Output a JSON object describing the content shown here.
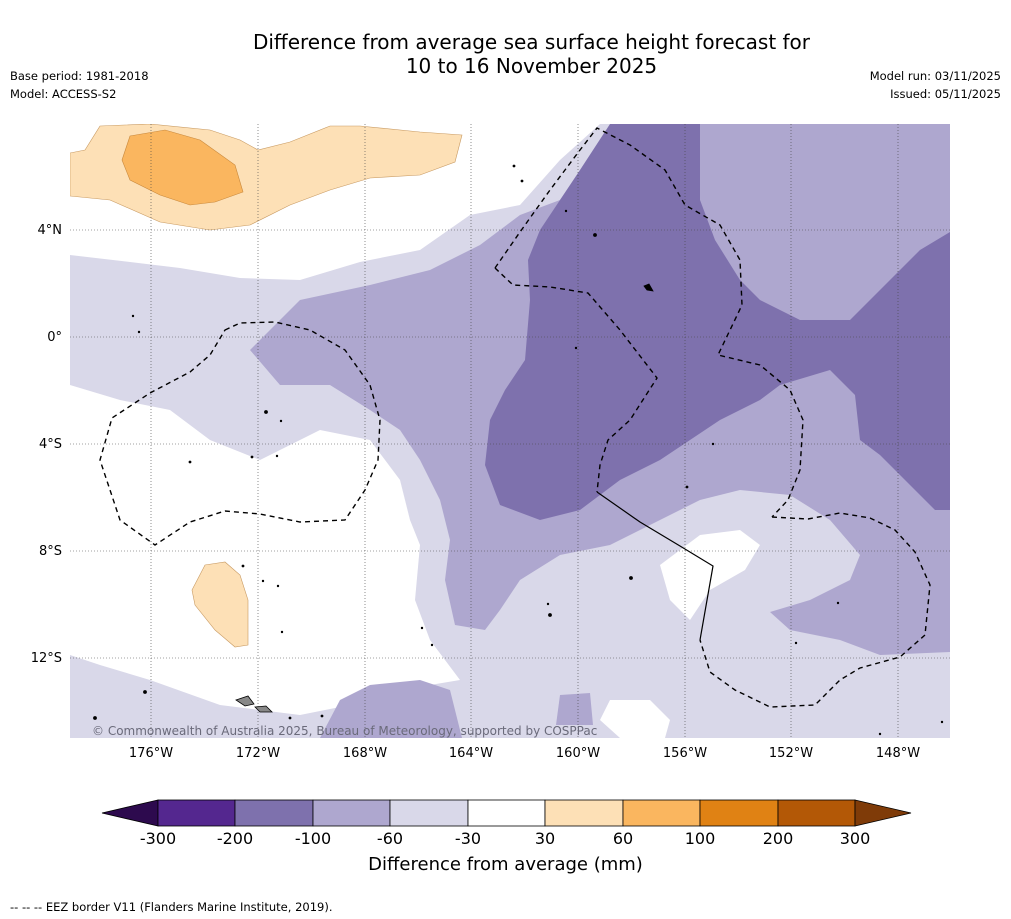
{
  "title": {
    "line1": "Difference from average sea surface height forecast for",
    "line2": "10 to 16 November 2025"
  },
  "meta_left": {
    "base_period": "Base period: 1981-2018",
    "model": "Model: ACCESS-S2"
  },
  "meta_right": {
    "model_run": "Model run: 03/11/2025",
    "issued": "Issued: 05/11/2025"
  },
  "map": {
    "lat_labels": [
      "4°N",
      "0°",
      "4°S",
      "8°S",
      "12°S"
    ],
    "lon_labels": [
      "176°W",
      "172°W",
      "168°W",
      "164°W",
      "160°W",
      "156°W",
      "152°W",
      "148°W"
    ],
    "copyright": "© Commonwealth of Australia 2025, Bureau of Meteorology, supported by COSPPac"
  },
  "colorbar": {
    "title": "Difference from average (mm)",
    "tick_labels": [
      "-300",
      "-200",
      "-100",
      "-60",
      "-30",
      "30",
      "60",
      "100",
      "200",
      "300"
    ],
    "colors": {
      "below_min": "#2d0a4e",
      "c1": "#54278f",
      "c2": "#7e71ad",
      "c3": "#aea7cf",
      "c4": "#d9d8e9",
      "neutral": "#ffffff",
      "w1": "#fde0b6",
      "w2": "#fab65f",
      "w3": "#e08214",
      "w4": "#b35806",
      "above_max": "#7f3b08"
    }
  },
  "footnote": "--  --  -- EEZ border V11 (Flanders Marine Institute, 2019)."
}
